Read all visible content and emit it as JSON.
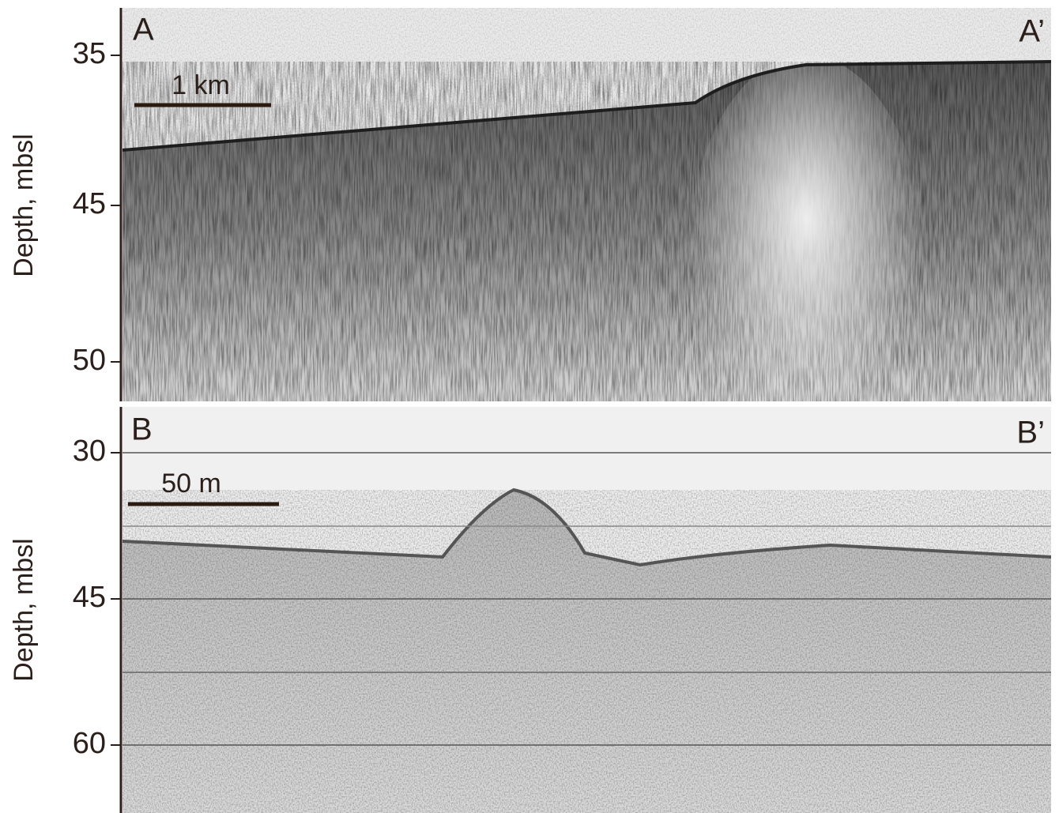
{
  "panels": [
    {
      "label": "A",
      "end_label": "A’",
      "y_label": "Depth, mbsl",
      "yticks": [
        35,
        45,
        50
      ],
      "scale_bar": "1 km"
    },
    {
      "label": "B",
      "end_label": "B’",
      "y_label": "Depth, mbsl",
      "yticks": [
        30,
        45,
        60
      ],
      "scale_bar": "50 m"
    }
  ]
}
